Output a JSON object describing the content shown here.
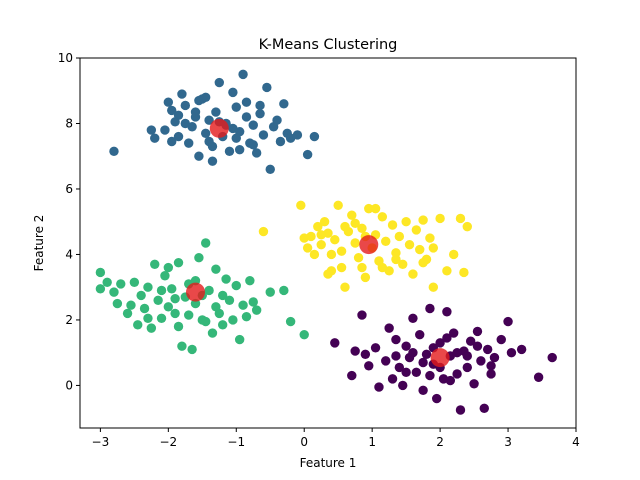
{
  "chart_data": {
    "type": "scatter",
    "title": "K-Means Clustering",
    "xlabel": "Feature 1",
    "ylabel": "Feature 2",
    "xlim": [
      -3.3,
      4.0
    ],
    "ylim": [
      -1.3,
      10.0
    ],
    "x_ticks": [
      -3,
      -2,
      -1,
      0,
      1,
      2,
      3,
      4
    ],
    "y_ticks": [
      0,
      2,
      4,
      6,
      8,
      10
    ],
    "grid": false,
    "legend": "none",
    "colors": {
      "cluster_blue": "#31688e",
      "cluster_yellow": "#fde725",
      "cluster_green": "#35b779",
      "cluster_purple": "#440154",
      "centroid": "#e31a1c"
    },
    "series": [
      {
        "color_key": "cluster_blue",
        "points": [
          [
            -2.8,
            7.15
          ],
          [
            -2.25,
            7.8
          ],
          [
            -2.2,
            7.55
          ],
          [
            -2.05,
            7.8
          ],
          [
            -2.0,
            8.65
          ],
          [
            -1.95,
            8.4
          ],
          [
            -1.9,
            8.05
          ],
          [
            -1.85,
            7.6
          ],
          [
            -1.8,
            8.9
          ],
          [
            -1.75,
            8.55
          ],
          [
            -1.7,
            7.4
          ],
          [
            -1.65,
            7.9
          ],
          [
            -1.6,
            8.2
          ],
          [
            -1.55,
            7.0
          ],
          [
            -1.5,
            8.75
          ],
          [
            -1.45,
            7.7
          ],
          [
            -1.4,
            8.1
          ],
          [
            -1.35,
            7.3
          ],
          [
            -1.3,
            8.35
          ],
          [
            -1.25,
            9.25
          ],
          [
            -1.2,
            7.6
          ],
          [
            -1.15,
            8.0
          ],
          [
            -1.1,
            7.15
          ],
          [
            -1.05,
            8.95
          ],
          [
            -1.0,
            8.5
          ],
          [
            -0.95,
            7.75
          ],
          [
            -0.9,
            9.5
          ],
          [
            -0.85,
            8.2
          ],
          [
            -0.8,
            7.4
          ],
          [
            -0.75,
            7.95
          ],
          [
            -0.7,
            7.1
          ],
          [
            -0.65,
            8.55
          ],
          [
            -0.6,
            7.65
          ],
          [
            -0.55,
            9.1
          ],
          [
            -0.5,
            6.6
          ],
          [
            -0.45,
            7.9
          ],
          [
            -0.4,
            8.1
          ],
          [
            -0.35,
            7.45
          ],
          [
            -0.3,
            8.6
          ],
          [
            -0.25,
            7.7
          ],
          [
            -0.2,
            7.55
          ],
          [
            -0.1,
            7.65
          ],
          [
            0.05,
            7.05
          ],
          [
            0.15,
            7.6
          ],
          [
            -1.6,
            8.35
          ],
          [
            -1.75,
            8.0
          ],
          [
            -1.4,
            7.45
          ],
          [
            -1.05,
            7.85
          ],
          [
            -0.85,
            8.65
          ],
          [
            -1.25,
            8.05
          ],
          [
            -1.95,
            7.45
          ],
          [
            -1.55,
            8.7
          ],
          [
            -0.95,
            7.2
          ],
          [
            -1.35,
            6.85
          ],
          [
            -1.15,
            7.95
          ],
          [
            -0.65,
            8.3
          ],
          [
            -1.85,
            8.25
          ],
          [
            -1.45,
            8.8
          ],
          [
            -1.0,
            7.55
          ],
          [
            -0.75,
            7.35
          ]
        ]
      },
      {
        "color_key": "cluster_yellow",
        "points": [
          [
            -0.6,
            4.7
          ],
          [
            -0.05,
            5.5
          ],
          [
            0.0,
            4.5
          ],
          [
            0.05,
            4.2
          ],
          [
            0.1,
            4.55
          ],
          [
            0.15,
            4.0
          ],
          [
            0.2,
            4.85
          ],
          [
            0.25,
            4.3
          ],
          [
            0.3,
            5.0
          ],
          [
            0.35,
            4.65
          ],
          [
            0.4,
            3.5
          ],
          [
            0.45,
            4.45
          ],
          [
            0.5,
            5.5
          ],
          [
            0.55,
            4.1
          ],
          [
            0.6,
            3.0
          ],
          [
            0.65,
            4.7
          ],
          [
            0.7,
            5.2
          ],
          [
            0.75,
            4.35
          ],
          [
            0.8,
            3.9
          ],
          [
            0.85,
            4.8
          ],
          [
            0.9,
            3.3
          ],
          [
            0.95,
            5.4
          ],
          [
            1.0,
            4.2
          ],
          [
            1.05,
            4.6
          ],
          [
            1.1,
            3.8
          ],
          [
            1.15,
            5.15
          ],
          [
            1.2,
            4.4
          ],
          [
            1.25,
            3.5
          ],
          [
            1.3,
            4.9
          ],
          [
            1.35,
            4.05
          ],
          [
            1.4,
            4.55
          ],
          [
            1.45,
            3.7
          ],
          [
            1.5,
            5.0
          ],
          [
            1.55,
            4.3
          ],
          [
            1.6,
            3.4
          ],
          [
            1.65,
            4.75
          ],
          [
            1.7,
            4.15
          ],
          [
            1.75,
            5.05
          ],
          [
            1.8,
            3.85
          ],
          [
            1.85,
            4.5
          ],
          [
            1.9,
            4.2
          ],
          [
            2.0,
            5.1
          ],
          [
            2.1,
            3.5
          ],
          [
            2.2,
            4.0
          ],
          [
            2.3,
            5.1
          ],
          [
            2.35,
            3.45
          ],
          [
            2.4,
            4.85
          ],
          [
            0.55,
            3.6
          ],
          [
            0.35,
            3.4
          ],
          [
            0.75,
            4.95
          ],
          [
            1.15,
            3.6
          ],
          [
            0.9,
            4.55
          ],
          [
            0.25,
            4.6
          ],
          [
            1.35,
            3.85
          ],
          [
            1.75,
            3.75
          ],
          [
            1.9,
            3.0
          ],
          [
            0.4,
            4.0
          ],
          [
            0.6,
            4.85
          ],
          [
            1.05,
            5.4
          ],
          [
            0.85,
            3.6
          ]
        ]
      },
      {
        "color_key": "cluster_green",
        "points": [
          [
            -3.0,
            3.45
          ],
          [
            -3.0,
            2.95
          ],
          [
            -2.9,
            3.15
          ],
          [
            -2.8,
            2.85
          ],
          [
            -2.75,
            2.5
          ],
          [
            -2.7,
            3.1
          ],
          [
            -2.6,
            2.2
          ],
          [
            -2.55,
            2.45
          ],
          [
            -2.5,
            3.15
          ],
          [
            -2.45,
            1.85
          ],
          [
            -2.4,
            2.75
          ],
          [
            -2.35,
            2.35
          ],
          [
            -2.3,
            3.0
          ],
          [
            -2.25,
            1.75
          ],
          [
            -2.2,
            3.7
          ],
          [
            -2.15,
            2.6
          ],
          [
            -2.1,
            2.05
          ],
          [
            -2.05,
            3.35
          ],
          [
            -2.0,
            2.4
          ],
          [
            -1.95,
            2.95
          ],
          [
            -1.9,
            2.2
          ],
          [
            -1.85,
            3.75
          ],
          [
            -1.8,
            1.2
          ],
          [
            -1.75,
            2.7
          ],
          [
            -1.7,
            3.1
          ],
          [
            -1.65,
            1.1
          ],
          [
            -1.6,
            2.5
          ],
          [
            -1.55,
            3.9
          ],
          [
            -1.5,
            2.0
          ],
          [
            -1.45,
            4.35
          ],
          [
            -1.4,
            2.9
          ],
          [
            -1.35,
            1.6
          ],
          [
            -1.3,
            3.55
          ],
          [
            -1.25,
            2.2
          ],
          [
            -1.2,
            1.85
          ],
          [
            -1.15,
            3.25
          ],
          [
            -1.1,
            2.6
          ],
          [
            -1.05,
            2.0
          ],
          [
            -1.0,
            3.05
          ],
          [
            -0.95,
            1.4
          ],
          [
            -0.9,
            2.45
          ],
          [
            -0.85,
            2.1
          ],
          [
            -0.8,
            3.2
          ],
          [
            -0.75,
            2.55
          ],
          [
            -0.7,
            2.3
          ],
          [
            -0.5,
            2.85
          ],
          [
            -0.3,
            2.9
          ],
          [
            -0.2,
            1.95
          ],
          [
            0.0,
            1.55
          ],
          [
            -1.7,
            2.15
          ],
          [
            -1.9,
            2.65
          ],
          [
            -1.5,
            2.75
          ],
          [
            -2.1,
            2.9
          ],
          [
            -1.3,
            2.4
          ],
          [
            -1.6,
            3.2
          ],
          [
            -2.3,
            2.05
          ],
          [
            -1.2,
            2.75
          ],
          [
            -1.85,
            1.8
          ],
          [
            -1.45,
            1.95
          ],
          [
            -2.0,
            3.6
          ]
        ]
      },
      {
        "color_key": "cluster_purple",
        "points": [
          [
            0.45,
            1.3
          ],
          [
            0.7,
            0.3
          ],
          [
            0.75,
            1.05
          ],
          [
            0.85,
            2.15
          ],
          [
            0.9,
            0.95
          ],
          [
            0.95,
            0.6
          ],
          [
            1.05,
            1.15
          ],
          [
            1.1,
            -0.05
          ],
          [
            1.2,
            0.75
          ],
          [
            1.25,
            1.75
          ],
          [
            1.3,
            0.2
          ],
          [
            1.35,
            1.4
          ],
          [
            1.4,
            0.55
          ],
          [
            1.45,
            0.0
          ],
          [
            1.5,
            1.2
          ],
          [
            1.55,
            0.85
          ],
          [
            1.6,
            2.05
          ],
          [
            1.65,
            0.4
          ],
          [
            1.7,
            1.55
          ],
          [
            1.75,
            -0.15
          ],
          [
            1.8,
            0.95
          ],
          [
            1.85,
            2.35
          ],
          [
            1.9,
            0.65
          ],
          [
            1.95,
            -0.4
          ],
          [
            2.0,
            1.3
          ],
          [
            2.05,
            0.2
          ],
          [
            2.1,
            2.25
          ],
          [
            2.15,
            0.9
          ],
          [
            2.2,
            1.6
          ],
          [
            2.25,
            0.35
          ],
          [
            2.3,
            -0.75
          ],
          [
            2.35,
            1.05
          ],
          [
            2.4,
            0.55
          ],
          [
            2.45,
            1.35
          ],
          [
            2.5,
            0.05
          ],
          [
            2.55,
            1.65
          ],
          [
            2.6,
            0.75
          ],
          [
            2.65,
            -0.7
          ],
          [
            2.7,
            1.1
          ],
          [
            2.75,
            0.35
          ],
          [
            2.8,
            0.85
          ],
          [
            2.9,
            1.4
          ],
          [
            3.0,
            1.95
          ],
          [
            3.05,
            1.0
          ],
          [
            3.2,
            1.1
          ],
          [
            3.45,
            0.25
          ],
          [
            3.65,
            0.85
          ],
          [
            1.5,
            0.4
          ],
          [
            1.75,
            0.7
          ],
          [
            2.0,
            0.55
          ],
          [
            2.25,
            1.0
          ],
          [
            1.9,
            1.15
          ],
          [
            2.15,
            0.15
          ],
          [
            1.6,
            1.0
          ],
          [
            2.4,
            0.9
          ],
          [
            1.85,
            0.3
          ],
          [
            1.35,
            0.9
          ],
          [
            2.55,
            1.2
          ],
          [
            2.1,
            1.45
          ],
          [
            2.75,
            0.6
          ]
        ]
      }
    ],
    "centroids": [
      [
        -1.25,
        7.85
      ],
      [
        0.95,
        4.3
      ],
      [
        -1.6,
        2.85
      ],
      [
        2.0,
        0.85
      ]
    ]
  }
}
